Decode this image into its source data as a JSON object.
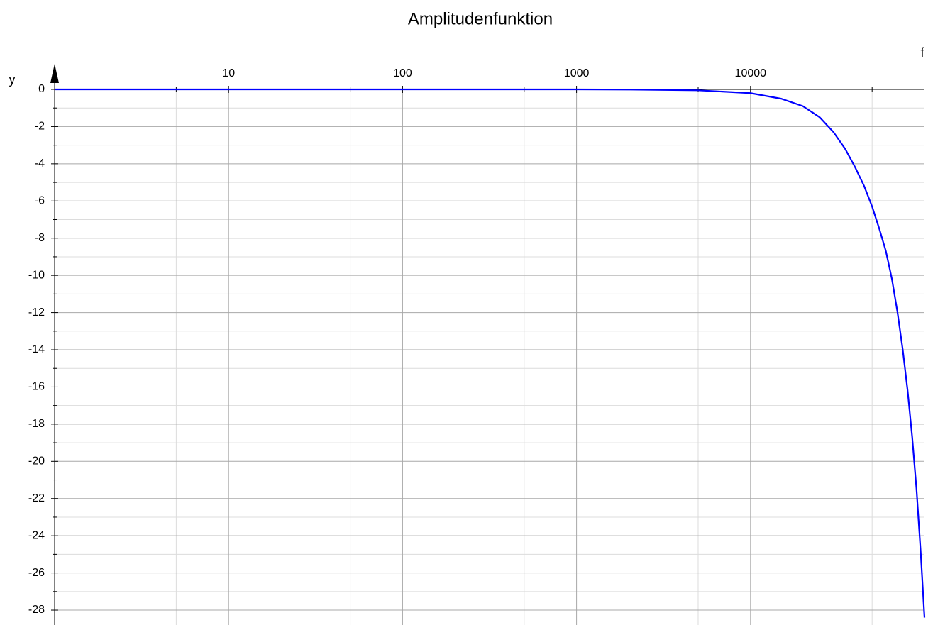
{
  "chart_data": {
    "type": "line",
    "title": "Amplitudenfunktion",
    "x_label": "f",
    "y_label": "y",
    "log_x": true,
    "grid": true,
    "xlim": [
      1,
      100000
    ],
    "xticks": [
      10,
      100,
      1000,
      10000
    ],
    "xminorticks": [
      5,
      50,
      500,
      5000,
      50000
    ],
    "ylim": [
      -28.8,
      0
    ],
    "yticks": [
      0,
      -2,
      -4,
      -6,
      -8,
      -10,
      -12,
      -14,
      -16,
      -18,
      -20,
      -22,
      -24,
      -26,
      -28
    ],
    "yminorticks": [
      -1,
      -3,
      -5,
      -7,
      -9,
      -11,
      -13,
      -15,
      -17,
      -19,
      -21,
      -23,
      -25,
      -27
    ],
    "series": [
      {
        "color": "#0000ff",
        "x": [
          1,
          10,
          100,
          1000,
          2000,
          5000,
          10000,
          15000,
          20000,
          25000,
          30000,
          35000,
          40000,
          45000,
          50000,
          55000,
          60000,
          65000,
          70000,
          75000,
          80000,
          85000,
          90000,
          95000,
          100000
        ],
        "values": [
          0,
          0,
          0,
          0,
          -0.01,
          -0.05,
          -0.2,
          -0.5,
          -0.9,
          -1.5,
          -2.3,
          -3.2,
          -4.2,
          -5.2,
          -6.3,
          -7.5,
          -8.7,
          -10.2,
          -12,
          -14,
          -16.2,
          -18.7,
          -21.5,
          -24.8,
          -28.4
        ]
      }
    ]
  }
}
